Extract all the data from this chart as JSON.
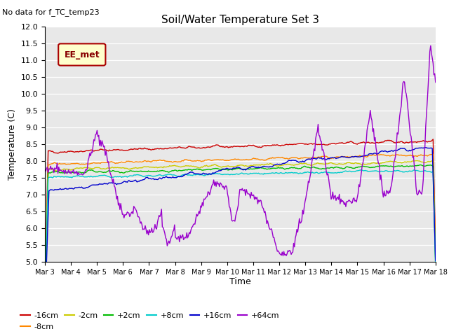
{
  "title": "Soil/Water Temperature Set 3",
  "subtitle": "No data for f_TC_temp23",
  "xlabel": "Time",
  "ylabel": "Temperature (C)",
  "ylim": [
    5.0,
    12.0
  ],
  "yticks": [
    5.0,
    5.5,
    6.0,
    6.5,
    7.0,
    7.5,
    8.0,
    8.5,
    9.0,
    9.5,
    10.0,
    10.5,
    11.0,
    11.5,
    12.0
  ],
  "xtick_labels": [
    "Mar 3",
    "Mar 4",
    "Mar 5",
    "Mar 6",
    "Mar 7",
    "Mar 8",
    "Mar 9",
    "Mar 10",
    "Mar 11",
    "Mar 12",
    "Mar 13",
    "Mar 14",
    "Mar 15",
    "Mar 16",
    "Mar 17",
    "Mar 18"
  ],
  "series_labels": [
    "-16cm",
    "-8cm",
    "-2cm",
    "+2cm",
    "+8cm",
    "+16cm",
    "+64cm"
  ],
  "series_colors": [
    "#cc0000",
    "#ff8800",
    "#cccc00",
    "#00bb00",
    "#00cccc",
    "#0000cc",
    "#9900cc"
  ],
  "legend_label": "EE_met",
  "legend_bg": "#ffffcc",
  "legend_border": "#aa0000",
  "plot_bg": "#e8e8e8",
  "n_points": 480,
  "seed": 42
}
